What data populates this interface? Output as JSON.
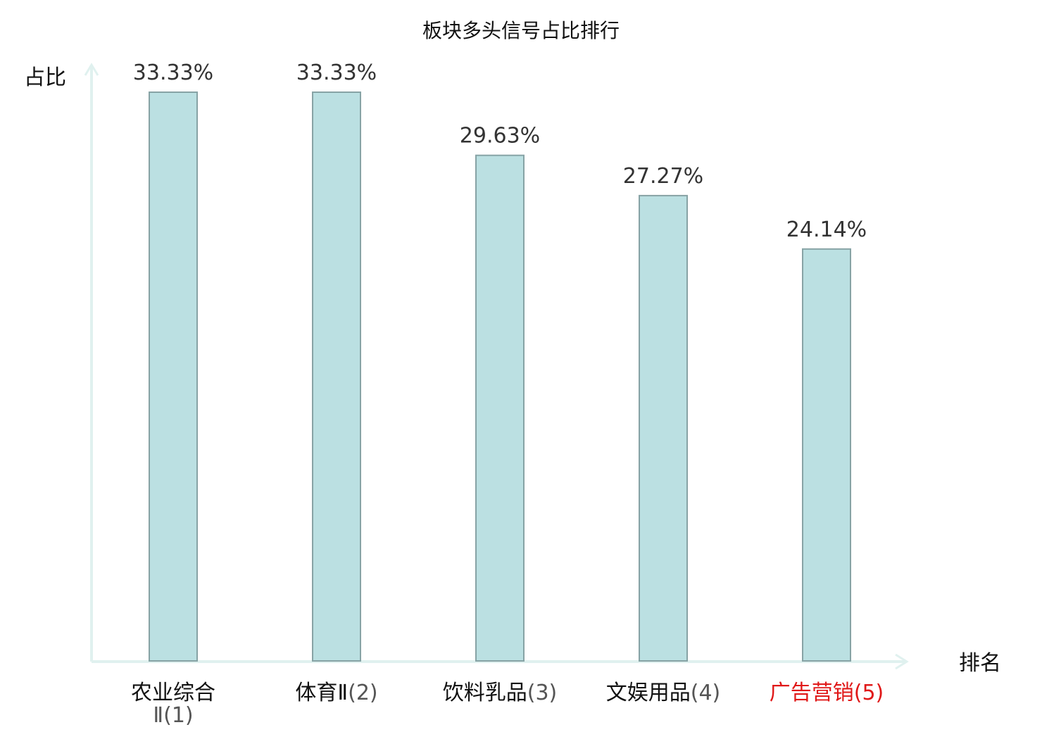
{
  "chart_data": {
    "type": "bar",
    "title": "板块多头信号占比排行",
    "xlabel": "排名",
    "ylabel": "占比",
    "categories": [
      "农业综合Ⅱ",
      "体育Ⅱ",
      "饮料乳品",
      "文娱用品",
      "广告营销"
    ],
    "ranks": [
      "(1)",
      "(2)",
      "(3)",
      "(4)",
      "(5)"
    ],
    "values": [
      33.33,
      33.33,
      29.63,
      27.27,
      24.14
    ],
    "value_labels": [
      "33.33%",
      "33.33%",
      "29.63%",
      "27.27%",
      "24.14%"
    ],
    "highlight_index": 4,
    "ylim": [
      0,
      33.33
    ],
    "grid": false,
    "colors": {
      "bar_fill": "#bbe0e2",
      "bar_stroke": "#87a3a5",
      "axis": "#e0f1ef",
      "highlight_text": "#e01818",
      "text": "#111111"
    }
  }
}
